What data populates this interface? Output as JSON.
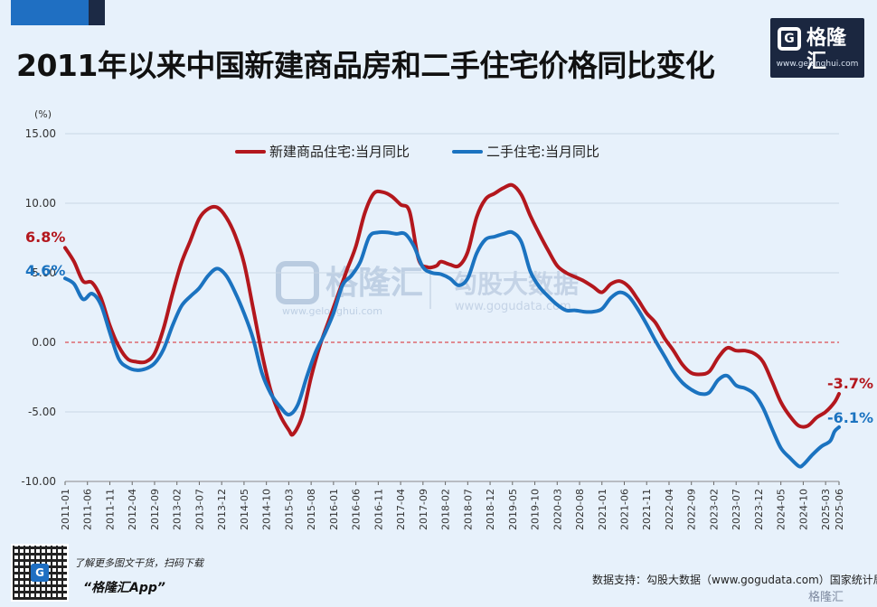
{
  "header": {
    "title": "2011年以来中国新建商品房和二手住宅价格同比变化",
    "logo_name": "格隆汇",
    "logo_url": "www.gelonghui.com"
  },
  "footer": {
    "promo_line": "了解更多图文干货，扫码下载",
    "promo_app": "“格隆汇App”",
    "source": "数据支持：勾股大数据（www.gogudata.com）国家统计局",
    "bottom_logo": "格隆汇",
    "qr_badge": "G"
  },
  "watermark": {
    "brand": "格隆汇",
    "brand_url": "www.gelonghui.com",
    "gogu": "勾股大数据",
    "gogu_url": "www.gogudata.com"
  },
  "colors": {
    "new_home": "#b3171d",
    "second_hand": "#1b73c0",
    "zero_line": "#d9252a",
    "background": "#e7f1fb"
  },
  "chart_data": {
    "type": "line",
    "ylabel": "(%)",
    "ylim": [
      -10,
      15
    ],
    "yticks": [
      "15.00",
      "10.00",
      "5.00",
      "0.00",
      "-5.00",
      "-10.00"
    ],
    "ytick_values": [
      15,
      10,
      5,
      0,
      -5,
      -10
    ],
    "xticks": [
      "2011-01",
      "2011-06",
      "2011-11",
      "2012-04",
      "2012-09",
      "2013-02",
      "2013-07",
      "2013-12",
      "2014-05",
      "2014-10",
      "2015-03",
      "2015-08",
      "2016-01",
      "2016-06",
      "2016-11",
      "2017-04",
      "2017-09",
      "2018-02",
      "2018-07",
      "2018-12",
      "2019-05",
      "2019-10",
      "2020-03",
      "2020-08",
      "2021-01",
      "2021-06",
      "2021-11",
      "2022-04",
      "2022-09",
      "2023-02",
      "2023-07",
      "2023-12",
      "2024-05",
      "2024-10",
      "2025-03",
      "2025-06"
    ],
    "legend_position": "top",
    "grid": true,
    "series": [
      {
        "name": "新建商品住宅:当月同比",
        "start_label": "6.8%",
        "end_label": "-3.7%",
        "points": [
          [
            "2011-01",
            6.8
          ],
          [
            "2011-03",
            5.8
          ],
          [
            "2011-05",
            4.4
          ],
          [
            "2011-07",
            4.3
          ],
          [
            "2011-09",
            3.2
          ],
          [
            "2011-11",
            1.2
          ],
          [
            "2012-01",
            -0.3
          ],
          [
            "2012-03",
            -1.2
          ],
          [
            "2012-05",
            -1.4
          ],
          [
            "2012-07",
            -1.4
          ],
          [
            "2012-09",
            -0.8
          ],
          [
            "2012-11",
            1.0
          ],
          [
            "2013-01",
            3.5
          ],
          [
            "2013-03",
            5.7
          ],
          [
            "2013-05",
            7.3
          ],
          [
            "2013-07",
            8.9
          ],
          [
            "2013-09",
            9.6
          ],
          [
            "2013-11",
            9.7
          ],
          [
            "2014-01",
            9.0
          ],
          [
            "2014-03",
            7.7
          ],
          [
            "2014-05",
            5.7
          ],
          [
            "2014-07",
            2.5
          ],
          [
            "2014-09",
            -0.8
          ],
          [
            "2014-11",
            -3.5
          ],
          [
            "2015-01",
            -5.2
          ],
          [
            "2015-03",
            -6.3
          ],
          [
            "2015-04",
            -6.6
          ],
          [
            "2015-06",
            -5.3
          ],
          [
            "2015-08",
            -2.5
          ],
          [
            "2015-10",
            -0.2
          ],
          [
            "2015-12",
            1.6
          ],
          [
            "2016-02",
            3.4
          ],
          [
            "2016-04",
            5.2
          ],
          [
            "2016-06",
            6.9
          ],
          [
            "2016-08",
            9.3
          ],
          [
            "2016-10",
            10.7
          ],
          [
            "2016-12",
            10.8
          ],
          [
            "2017-02",
            10.5
          ],
          [
            "2017-04",
            9.9
          ],
          [
            "2017-06",
            9.4
          ],
          [
            "2017-08",
            6.0
          ],
          [
            "2017-10",
            5.4
          ],
          [
            "2017-12",
            5.5
          ],
          [
            "2018-01",
            5.8
          ],
          [
            "2018-03",
            5.6
          ],
          [
            "2018-05",
            5.5
          ],
          [
            "2018-07",
            6.5
          ],
          [
            "2018-09",
            9.0
          ],
          [
            "2018-11",
            10.3
          ],
          [
            "2019-01",
            10.7
          ],
          [
            "2019-03",
            11.1
          ],
          [
            "2019-05",
            11.3
          ],
          [
            "2019-07",
            10.6
          ],
          [
            "2019-09",
            9.1
          ],
          [
            "2019-11",
            7.8
          ],
          [
            "2020-01",
            6.6
          ],
          [
            "2020-03",
            5.5
          ],
          [
            "2020-05",
            5.0
          ],
          [
            "2020-07",
            4.7
          ],
          [
            "2020-09",
            4.4
          ],
          [
            "2020-11",
            4.0
          ],
          [
            "2021-01",
            3.6
          ],
          [
            "2021-03",
            4.2
          ],
          [
            "2021-05",
            4.4
          ],
          [
            "2021-07",
            4.0
          ],
          [
            "2021-09",
            3.1
          ],
          [
            "2021-11",
            2.1
          ],
          [
            "2022-01",
            1.4
          ],
          [
            "2022-03",
            0.3
          ],
          [
            "2022-05",
            -0.6
          ],
          [
            "2022-07",
            -1.6
          ],
          [
            "2022-09",
            -2.2
          ],
          [
            "2022-11",
            -2.3
          ],
          [
            "2023-01",
            -2.1
          ],
          [
            "2023-03",
            -1.1
          ],
          [
            "2023-05",
            -0.4
          ],
          [
            "2023-07",
            -0.6
          ],
          [
            "2023-09",
            -0.6
          ],
          [
            "2023-11",
            -0.8
          ],
          [
            "2024-01",
            -1.4
          ],
          [
            "2024-03",
            -2.8
          ],
          [
            "2024-05",
            -4.3
          ],
          [
            "2024-07",
            -5.3
          ],
          [
            "2024-09",
            -6.0
          ],
          [
            "2024-11",
            -6.0
          ],
          [
            "2025-01",
            -5.4
          ],
          [
            "2025-03",
            -5.0
          ],
          [
            "2025-05",
            -4.3
          ],
          [
            "2025-06",
            -3.7
          ]
        ]
      },
      {
        "name": "二手住宅:当月同比",
        "start_label": "4.6%",
        "end_label": "-6.1%",
        "points": [
          [
            "2011-01",
            4.6
          ],
          [
            "2011-03",
            4.2
          ],
          [
            "2011-05",
            3.1
          ],
          [
            "2011-07",
            3.5
          ],
          [
            "2011-09",
            2.7
          ],
          [
            "2011-11",
            0.7
          ],
          [
            "2012-01",
            -1.2
          ],
          [
            "2012-03",
            -1.8
          ],
          [
            "2012-05",
            -2.0
          ],
          [
            "2012-07",
            -1.9
          ],
          [
            "2012-09",
            -1.5
          ],
          [
            "2012-11",
            -0.5
          ],
          [
            "2013-01",
            1.2
          ],
          [
            "2013-03",
            2.6
          ],
          [
            "2013-05",
            3.3
          ],
          [
            "2013-07",
            3.9
          ],
          [
            "2013-09",
            4.8
          ],
          [
            "2013-11",
            5.3
          ],
          [
            "2014-01",
            4.8
          ],
          [
            "2014-03",
            3.6
          ],
          [
            "2014-05",
            2.1
          ],
          [
            "2014-07",
            0.3
          ],
          [
            "2014-09",
            -2.2
          ],
          [
            "2014-11",
            -3.7
          ],
          [
            "2015-01",
            -4.6
          ],
          [
            "2015-03",
            -5.2
          ],
          [
            "2015-05",
            -4.5
          ],
          [
            "2015-07",
            -2.5
          ],
          [
            "2015-09",
            -0.7
          ],
          [
            "2015-11",
            0.6
          ],
          [
            "2016-01",
            2.1
          ],
          [
            "2016-03",
            4.1
          ],
          [
            "2016-05",
            4.8
          ],
          [
            "2016-07",
            5.8
          ],
          [
            "2016-09",
            7.6
          ],
          [
            "2016-11",
            7.9
          ],
          [
            "2017-01",
            7.9
          ],
          [
            "2017-03",
            7.8
          ],
          [
            "2017-05",
            7.8
          ],
          [
            "2017-07",
            6.9
          ],
          [
            "2017-09",
            5.4
          ],
          [
            "2017-11",
            5.0
          ],
          [
            "2018-01",
            4.9
          ],
          [
            "2018-03",
            4.6
          ],
          [
            "2018-05",
            4.1
          ],
          [
            "2018-07",
            4.6
          ],
          [
            "2018-09",
            6.4
          ],
          [
            "2018-11",
            7.4
          ],
          [
            "2019-01",
            7.6
          ],
          [
            "2019-03",
            7.8
          ],
          [
            "2019-05",
            7.9
          ],
          [
            "2019-07",
            7.2
          ],
          [
            "2019-09",
            5.1
          ],
          [
            "2019-11",
            4.0
          ],
          [
            "2020-01",
            3.3
          ],
          [
            "2020-03",
            2.7
          ],
          [
            "2020-05",
            2.3
          ],
          [
            "2020-07",
            2.3
          ],
          [
            "2020-09",
            2.2
          ],
          [
            "2020-11",
            2.2
          ],
          [
            "2021-01",
            2.4
          ],
          [
            "2021-03",
            3.2
          ],
          [
            "2021-05",
            3.6
          ],
          [
            "2021-07",
            3.3
          ],
          [
            "2021-09",
            2.4
          ],
          [
            "2021-11",
            1.3
          ],
          [
            "2022-01",
            0.1
          ],
          [
            "2022-03",
            -1.0
          ],
          [
            "2022-05",
            -2.1
          ],
          [
            "2022-07",
            -2.9
          ],
          [
            "2022-09",
            -3.4
          ],
          [
            "2022-11",
            -3.7
          ],
          [
            "2023-01",
            -3.6
          ],
          [
            "2023-03",
            -2.7
          ],
          [
            "2023-05",
            -2.4
          ],
          [
            "2023-07",
            -3.1
          ],
          [
            "2023-09",
            -3.3
          ],
          [
            "2023-11",
            -3.7
          ],
          [
            "2024-01",
            -4.7
          ],
          [
            "2024-03",
            -6.2
          ],
          [
            "2024-05",
            -7.6
          ],
          [
            "2024-07",
            -8.3
          ],
          [
            "2024-09",
            -8.9
          ],
          [
            "2024-10",
            -8.8
          ],
          [
            "2024-12",
            -8.1
          ],
          [
            "2025-02",
            -7.5
          ],
          [
            "2025-04",
            -7.1
          ],
          [
            "2025-05",
            -6.4
          ],
          [
            "2025-06",
            -6.1
          ]
        ]
      }
    ]
  }
}
